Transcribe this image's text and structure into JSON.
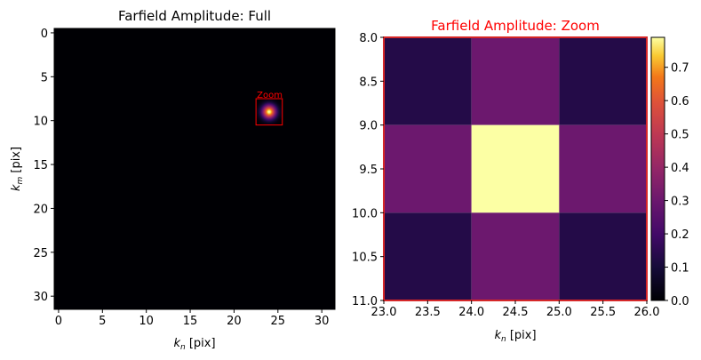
{
  "chart_data": [
    {
      "type": "heatmap",
      "title": "Farfield Amplitude: Full",
      "xlabel": "k_n [pix]",
      "ylabel": "k_m [pix]",
      "xlim": [
        -0.5,
        31.5
      ],
      "ylim": [
        31.5,
        -0.5
      ],
      "xticks": [
        0,
        5,
        10,
        15,
        20,
        25,
        30
      ],
      "yticks": [
        0,
        5,
        10,
        15,
        20,
        25,
        30
      ],
      "colormap": "inferno",
      "background_value": 0,
      "spot": {
        "center_x": 24,
        "center_y": 9,
        "peak": 0.79
      },
      "annotation": {
        "label": "Zoom",
        "color": "#ff0000",
        "x_range": [
          22.5,
          25.5
        ],
        "y_range": [
          7.5,
          10.5
        ]
      }
    },
    {
      "type": "heatmap",
      "title": "Farfield Amplitude: Zoom",
      "title_color": "#ff0000",
      "xlabel": "k_n [pix]",
      "ylabel": "",
      "x_edges": [
        23,
        24,
        25,
        26
      ],
      "y_edges": [
        8,
        9,
        10,
        11
      ],
      "xlim": [
        23.0,
        26.0
      ],
      "ylim": [
        11.0,
        8.0
      ],
      "xticks": [
        "23.0",
        "23.5",
        "24.0",
        "24.5",
        "25.0",
        "25.5",
        "26.0"
      ],
      "yticks": [
        "8.0",
        "8.5",
        "9.0",
        "9.5",
        "10.0",
        "10.5",
        "11.0"
      ],
      "values": [
        [
          0.13,
          0.3,
          0.13
        ],
        [
          0.3,
          0.79,
          0.3
        ],
        [
          0.13,
          0.3,
          0.13
        ]
      ],
      "colormap": "inferno",
      "frame_color": "#d62728",
      "colorbar": {
        "min": 0.0,
        "max": 0.79,
        "ticks": [
          "0.0",
          "0.1",
          "0.2",
          "0.3",
          "0.4",
          "0.5",
          "0.6",
          "0.7"
        ]
      }
    }
  ]
}
